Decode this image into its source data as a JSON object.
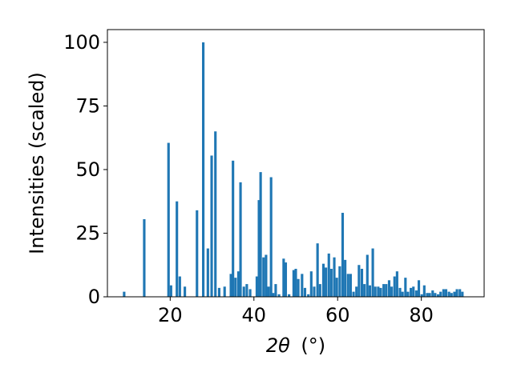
{
  "chart_data": {
    "type": "bar",
    "title": "",
    "xlabel_main": "2θ",
    "xlabel_unit": "(°)",
    "ylabel": "Intensities (scaled)",
    "xlim": [
      5,
      95
    ],
    "ylim": [
      0,
      105
    ],
    "xticks": [
      20,
      40,
      60,
      80
    ],
    "yticks": [
      0,
      25,
      50,
      75,
      100
    ],
    "bar_width": 0.6,
    "color": "#1f77b4",
    "grid": false,
    "legend": "none",
    "x": [
      9.0,
      13.8,
      19.6,
      20.2,
      21.6,
      22.3,
      23.5,
      26.4,
      27.9,
      29.0,
      29.9,
      30.8,
      31.7,
      33.0,
      34.5,
      35.0,
      35.6,
      36.3,
      36.8,
      37.6,
      38.3,
      39.1,
      40.7,
      41.2,
      41.6,
      42.3,
      42.9,
      43.5,
      44.1,
      44.6,
      45.2,
      46.0,
      47.1,
      47.6,
      48.4,
      49.5,
      50.0,
      50.6,
      51.5,
      52.2,
      53.0,
      53.7,
      54.4,
      55.2,
      55.8,
      56.6,
      57.2,
      57.9,
      58.5,
      59.2,
      59.8,
      60.5,
      61.2,
      61.8,
      62.5,
      63.1,
      63.8,
      64.5,
      65.1,
      65.8,
      66.4,
      67.1,
      67.7,
      68.4,
      69.0,
      69.7,
      70.3,
      71.0,
      71.6,
      72.3,
      72.9,
      73.6,
      74.2,
      74.9,
      75.5,
      76.2,
      76.8,
      77.5,
      78.1,
      78.8,
      79.4,
      80.1,
      80.7,
      81.4,
      82.0,
      82.7,
      83.3,
      84.0,
      84.6,
      85.3,
      85.9,
      86.6,
      87.2,
      87.9,
      88.5,
      89.2,
      89.8
    ],
    "values": [
      2,
      30.5,
      60.5,
      4.5,
      37.5,
      8,
      4,
      34,
      100,
      19,
      55.5,
      65,
      3.5,
      4,
      9,
      53.5,
      7.5,
      10,
      45,
      4,
      5,
      3,
      8,
      38,
      49,
      15.5,
      16.5,
      4,
      47,
      1.5,
      5,
      1,
      15,
      13.5,
      1,
      10.5,
      11,
      7,
      9,
      3.5,
      1,
      10,
      4,
      21,
      5,
      13,
      11.5,
      17,
      11,
      15.5,
      7.5,
      12,
      33,
      14.5,
      9,
      9,
      2,
      4,
      12.5,
      11,
      5,
      16.5,
      4.5,
      19,
      4,
      4,
      3.5,
      5,
      5,
      6.5,
      4,
      8,
      10,
      3.5,
      2,
      7.5,
      2,
      3.5,
      4,
      2.5,
      6.5,
      1,
      4.5,
      1.5,
      1.5,
      2.5,
      1.5,
      1,
      2,
      3,
      3,
      2,
      1.5,
      2,
      3,
      3,
      2
    ]
  }
}
